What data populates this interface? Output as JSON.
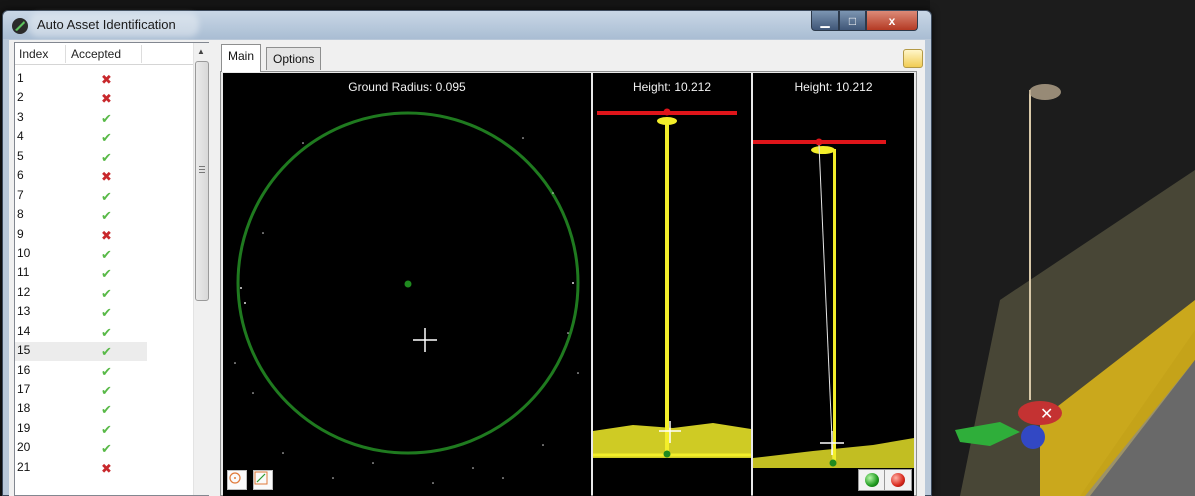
{
  "window": {
    "title": "Auto Asset Identification",
    "controls": {
      "minimize": "▁",
      "maximize": "□",
      "close": "x"
    }
  },
  "list": {
    "columns": [
      "Index",
      "Accepted"
    ],
    "rows": [
      {
        "index": "1",
        "accepted": false
      },
      {
        "index": "2",
        "accepted": false
      },
      {
        "index": "3",
        "accepted": true
      },
      {
        "index": "4",
        "accepted": true
      },
      {
        "index": "5",
        "accepted": true
      },
      {
        "index": "6",
        "accepted": false
      },
      {
        "index": "7",
        "accepted": true
      },
      {
        "index": "8",
        "accepted": true
      },
      {
        "index": "9",
        "accepted": false
      },
      {
        "index": "10",
        "accepted": true
      },
      {
        "index": "11",
        "accepted": true
      },
      {
        "index": "12",
        "accepted": true
      },
      {
        "index": "13",
        "accepted": true
      },
      {
        "index": "14",
        "accepted": true
      },
      {
        "index": "15",
        "accepted": true
      },
      {
        "index": "16",
        "accepted": true
      },
      {
        "index": "17",
        "accepted": true
      },
      {
        "index": "18",
        "accepted": true
      },
      {
        "index": "19",
        "accepted": true
      },
      {
        "index": "20",
        "accepted": true
      },
      {
        "index": "21",
        "accepted": false
      }
    ],
    "selected_index": "15",
    "accepted_glyph": "✔",
    "rejected_glyph": "✖"
  },
  "tabs": [
    {
      "label": "Main",
      "active": true
    },
    {
      "label": "Options",
      "active": false
    }
  ],
  "views": {
    "ground": {
      "label": "Ground Radius: 0.095"
    },
    "height_front": {
      "label": "Height: 10.212"
    },
    "height_side": {
      "label": "Height: 10.212"
    }
  },
  "colors": {
    "ground_circle": "#1f7a1f",
    "height_line": "#e0151a",
    "pole_points": "#f3ee2a",
    "crosshair": "#ffffff"
  },
  "icons": {
    "app": "app-logo-icon",
    "options_panel": "options-panel-icon",
    "circle_tool": "circle-tool-icon",
    "line_tool": "line-tool-icon",
    "accept": "accept-ball-icon",
    "reject": "reject-ball-icon"
  }
}
